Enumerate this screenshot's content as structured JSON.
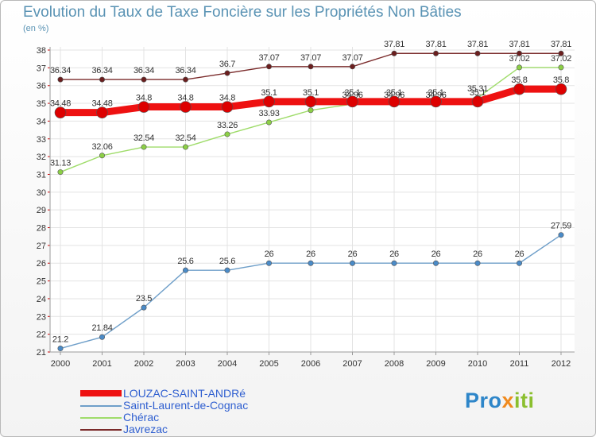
{
  "title": "Evolution du Taux de Taxe Foncière sur les Propriétés Non Bâties",
  "subtitle": "(en %)",
  "logo": {
    "part1": "Pro",
    "part2": "x",
    "part3": "iti"
  },
  "colors": {
    "grid": "#e3e3e3",
    "axis": "#9a9a9a",
    "tick_text": "#333333"
  },
  "chart_data": {
    "type": "line",
    "title": "Evolution du Taux de Taxe Foncière sur les Propriétés Non Bâties",
    "ylabel": "(en %)",
    "xlabel": "",
    "x": [
      "2000",
      "2001",
      "2002",
      "2003",
      "2004",
      "2005",
      "2006",
      "2007",
      "2008",
      "2009",
      "2010",
      "2011",
      "2012"
    ],
    "ylim": [
      21,
      38
    ],
    "yticks": [
      21,
      22,
      23,
      24,
      25,
      26,
      27,
      28,
      29,
      30,
      31,
      32,
      33,
      34,
      35,
      36,
      37,
      38
    ],
    "grid": true,
    "legend_position": "bottom-left",
    "series": [
      {
        "name": "Javrezac",
        "color": "#7a2a2a",
        "marker": "#6b1e1e",
        "values": [
          36.34,
          36.34,
          36.34,
          36.34,
          36.7,
          37.07,
          37.07,
          37.07,
          37.81,
          37.81,
          37.81,
          37.81,
          37.81
        ],
        "labels": [
          "36.34",
          "36.34",
          "36.34",
          "36.34",
          "36.7",
          "37.07",
          "37.07",
          "37.07",
          "37.81",
          "37.81",
          "37.81",
          "37.81",
          "37.81"
        ]
      },
      {
        "name": "Chérac",
        "color": "#9fdc6a",
        "marker": "#8ccf46",
        "values": [
          31.13,
          32.06,
          32.54,
          32.54,
          33.26,
          33.93,
          34.61,
          34.96,
          34.96,
          34.96,
          35.31,
          37.02,
          37.02
        ],
        "labels": [
          "31.13",
          "32.06",
          "32.54",
          "32.54",
          "33.26",
          "33.93",
          "34.61",
          "34.96",
          "34.96",
          "34.96",
          "35.31",
          "37.02",
          "37.02"
        ]
      },
      {
        "name": "Saint-Laurent-de-Cognac",
        "color": "#6f9fc9",
        "marker": "#4a8bc8",
        "values": [
          21.2,
          21.84,
          23.5,
          25.6,
          25.6,
          26,
          26,
          26,
          26,
          26,
          26,
          26,
          27.59
        ],
        "labels": [
          "21.2",
          "21.84",
          "23.5",
          "25.6",
          "25.6",
          "26",
          "26",
          "26",
          "26",
          "26",
          "26",
          "26",
          "27.59"
        ]
      },
      {
        "name": "LOUZAC-SAINT-ANDRé",
        "color": "#ee1111",
        "marker": "#dd0000",
        "values": [
          34.48,
          34.48,
          34.8,
          34.8,
          34.8,
          35.1,
          35.1,
          35.1,
          35.1,
          35.1,
          35.1,
          35.8,
          35.8
        ],
        "labels": [
          "34.48",
          "34.48",
          "34.8",
          "34.8",
          "34.8",
          "35.1",
          "35.1",
          "35.1",
          "35.1",
          "35.1",
          "35.1",
          "35.8",
          "35.8"
        ]
      }
    ],
    "legend_order": [
      "LOUZAC-SAINT-ANDRé",
      "Saint-Laurent-de-Cognac",
      "Chérac",
      "Javrezac"
    ]
  }
}
